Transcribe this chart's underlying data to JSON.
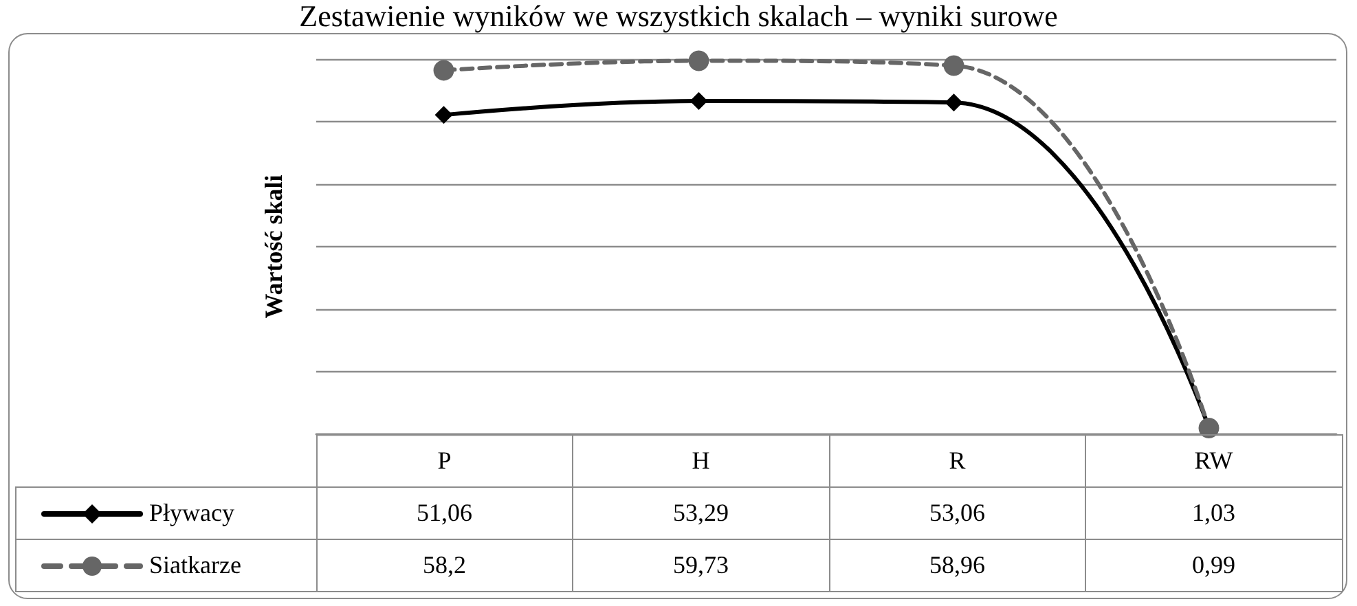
{
  "chart_data": {
    "type": "line",
    "title": "Zestawienie wyników we wszystkich skalach – wyniki surowe",
    "ylabel": "Wartość skali",
    "categories": [
      "P",
      "H",
      "R",
      "RW"
    ],
    "series": [
      {
        "name": "Pływacy",
        "color": "#000000",
        "values": [
          51.06,
          53.29,
          53.06,
          1.03
        ],
        "value_labels": [
          "51,06",
          "53,29",
          "53,06",
          "1,03"
        ],
        "marker": "diamond",
        "line_style": "solid"
      },
      {
        "name": "Siatkarze",
        "color": "#666666",
        "values": [
          58.2,
          59.73,
          58.96,
          0.99
        ],
        "value_labels": [
          "58,2",
          "59,73",
          "58,96",
          "0,99"
        ],
        "marker": "circle",
        "line_style": "dashed"
      }
    ],
    "grid": "y",
    "legend": "bottom",
    "tick_labels": "x"
  }
}
